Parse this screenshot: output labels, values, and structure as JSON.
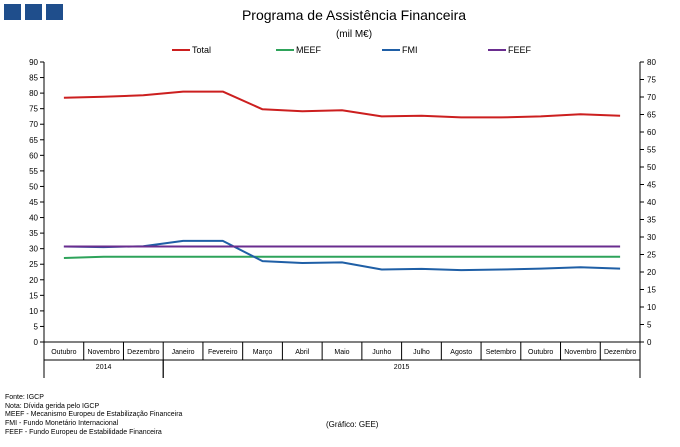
{
  "chart_data": {
    "type": "line",
    "title": "Programa de Assistência Financeira",
    "subtitle": "(mil M€)",
    "categories": [
      "Outubro",
      "Novembro",
      "Dezembro",
      "Janeiro",
      "Fevereiro",
      "Março",
      "Abril",
      "Maio",
      "Junho",
      "Julho",
      "Agosto",
      "Setembro",
      "Outubro",
      "Novembro",
      "Dezembro"
    ],
    "year_labels": [
      {
        "label": "2014",
        "start": 0,
        "end": 2
      },
      {
        "label": "2015",
        "start": 3,
        "end": 14
      }
    ],
    "ylim_left": [
      0,
      90
    ],
    "yticks_left": [
      0,
      5,
      10,
      15,
      20,
      25,
      30,
      35,
      40,
      45,
      50,
      55,
      60,
      65,
      70,
      75,
      80,
      85,
      90
    ],
    "ylim_right": [
      0,
      80
    ],
    "yticks_right": [
      0,
      5,
      10,
      15,
      20,
      25,
      30,
      35,
      40,
      45,
      50,
      55,
      60,
      65,
      70,
      75,
      80
    ],
    "grid": false,
    "legend_position": "top",
    "series": [
      {
        "name": "Total",
        "color": "#cc1f1f",
        "values": [
          78.5,
          78.8,
          79.3,
          80.5,
          80.5,
          74.8,
          74.2,
          74.5,
          72.5,
          72.7,
          72.2,
          72.2,
          72.5,
          73.2,
          72.7
        ]
      },
      {
        "name": "MEEF",
        "color": "#2ea35a",
        "values": [
          27.0,
          27.4,
          27.4,
          27.4,
          27.4,
          27.4,
          27.4,
          27.4,
          27.4,
          27.4,
          27.4,
          27.4,
          27.4,
          27.4,
          27.4
        ]
      },
      {
        "name": "FMI",
        "color": "#1f5fa6",
        "values": [
          30.7,
          30.5,
          30.8,
          32.5,
          32.5,
          26.0,
          25.4,
          25.6,
          23.3,
          23.5,
          23.1,
          23.3,
          23.6,
          24.0,
          23.6
        ]
      },
      {
        "name": "FEEF",
        "color": "#6a2d8f",
        "values": [
          30.7,
          30.7,
          30.7,
          30.7,
          30.7,
          30.7,
          30.7,
          30.7,
          30.7,
          30.7,
          30.7,
          30.7,
          30.7,
          30.7,
          30.7
        ]
      }
    ]
  },
  "notes": [
    "Fonte: IGCP",
    "Nota: Dívida gerida pelo IGCP",
    "MEEF - Mecanismo Europeu de Estabilização Financeira",
    "FMI - Fundo Monetário Internacional",
    "FEEF - Fundo Europeu de Estabilidade Financeira"
  ],
  "source_label": "(Gráfico: GEE)",
  "logo_color": "#1f4e8c"
}
